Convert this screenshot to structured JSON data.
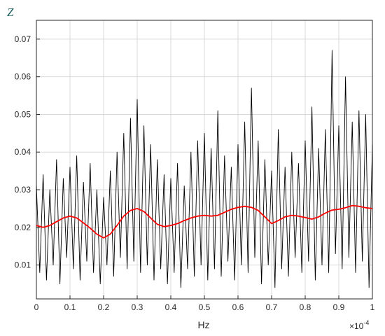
{
  "chart_data": {
    "type": "line",
    "ylabel": "Z",
    "xlabel": "Hz",
    "x_exponent_prefix": "×10",
    "x_exponent_power": "-4",
    "xlim": [
      0,
      1
    ],
    "ylim": [
      0.001,
      0.075
    ],
    "x_ticks": [
      "0",
      "0.1",
      "0.2",
      "0.3",
      "0.4",
      "0.5",
      "0.6",
      "0.7",
      "0.8",
      "0.9",
      "1"
    ],
    "y_ticks": [
      "0.01",
      "0.02",
      "0.03",
      "0.04",
      "0.05",
      "0.06",
      "0.07"
    ],
    "x_tick_values": [
      0,
      0.1,
      0.2,
      0.3,
      0.4,
      0.5,
      0.6,
      0.7,
      0.8,
      0.9,
      1
    ],
    "y_tick_values": [
      0.01,
      0.02,
      0.03,
      0.04,
      0.05,
      0.06,
      0.07
    ],
    "grid": true,
    "series": [
      {
        "color": "#000000",
        "peaks": [
          [
            0.0,
            0.031
          ],
          [
            0.01,
            0.008
          ],
          [
            0.02,
            0.034
          ],
          [
            0.03,
            0.006
          ],
          [
            0.04,
            0.03
          ],
          [
            0.05,
            0.01
          ],
          [
            0.06,
            0.038
          ],
          [
            0.07,
            0.005
          ],
          [
            0.08,
            0.033
          ],
          [
            0.09,
            0.012
          ],
          [
            0.1,
            0.036
          ],
          [
            0.11,
            0.009
          ],
          [
            0.12,
            0.039
          ],
          [
            0.13,
            0.006
          ],
          [
            0.14,
            0.032
          ],
          [
            0.15,
            0.011
          ],
          [
            0.16,
            0.037
          ],
          [
            0.17,
            0.008
          ],
          [
            0.18,
            0.03
          ],
          [
            0.19,
            0.005
          ],
          [
            0.2,
            0.028
          ],
          [
            0.21,
            0.01
          ],
          [
            0.22,
            0.035
          ],
          [
            0.23,
            0.007
          ],
          [
            0.24,
            0.04
          ],
          [
            0.25,
            0.012
          ],
          [
            0.26,
            0.045
          ],
          [
            0.27,
            0.009
          ],
          [
            0.28,
            0.049
          ],
          [
            0.29,
            0.011
          ],
          [
            0.3,
            0.054
          ],
          [
            0.31,
            0.008
          ],
          [
            0.32,
            0.047
          ],
          [
            0.33,
            0.01
          ],
          [
            0.34,
            0.042
          ],
          [
            0.35,
            0.006
          ],
          [
            0.36,
            0.038
          ],
          [
            0.37,
            0.009
          ],
          [
            0.38,
            0.034
          ],
          [
            0.39,
            0.005
          ],
          [
            0.4,
            0.033
          ],
          [
            0.41,
            0.008
          ],
          [
            0.42,
            0.037
          ],
          [
            0.43,
            0.004
          ],
          [
            0.44,
            0.031
          ],
          [
            0.45,
            0.009
          ],
          [
            0.46,
            0.04
          ],
          [
            0.47,
            0.007
          ],
          [
            0.48,
            0.043
          ],
          [
            0.49,
            0.01
          ],
          [
            0.5,
            0.045
          ],
          [
            0.51,
            0.006
          ],
          [
            0.52,
            0.041
          ],
          [
            0.53,
            0.009
          ],
          [
            0.54,
            0.051
          ],
          [
            0.55,
            0.007
          ],
          [
            0.56,
            0.039
          ],
          [
            0.57,
            0.011
          ],
          [
            0.58,
            0.036
          ],
          [
            0.59,
            0.006
          ],
          [
            0.6,
            0.042
          ],
          [
            0.61,
            0.01
          ],
          [
            0.62,
            0.048
          ],
          [
            0.63,
            0.008
          ],
          [
            0.64,
            0.057
          ],
          [
            0.65,
            0.012
          ],
          [
            0.66,
            0.043
          ],
          [
            0.67,
            0.005
          ],
          [
            0.68,
            0.038
          ],
          [
            0.69,
            0.01
          ],
          [
            0.7,
            0.035
          ],
          [
            0.71,
            0.004
          ],
          [
            0.72,
            0.046
          ],
          [
            0.73,
            0.009
          ],
          [
            0.74,
            0.036
          ],
          [
            0.75,
            0.007
          ],
          [
            0.76,
            0.04
          ],
          [
            0.77,
            0.012
          ],
          [
            0.78,
            0.037
          ],
          [
            0.79,
            0.008
          ],
          [
            0.8,
            0.043
          ],
          [
            0.81,
            0.011
          ],
          [
            0.82,
            0.052
          ],
          [
            0.83,
            0.006
          ],
          [
            0.84,
            0.041
          ],
          [
            0.85,
            0.01
          ],
          [
            0.86,
            0.046
          ],
          [
            0.87,
            0.008
          ],
          [
            0.88,
            0.067
          ],
          [
            0.89,
            0.013
          ],
          [
            0.9,
            0.047
          ],
          [
            0.91,
            0.009
          ],
          [
            0.92,
            0.06
          ],
          [
            0.93,
            0.012
          ],
          [
            0.94,
            0.048
          ],
          [
            0.95,
            0.008
          ],
          [
            0.96,
            0.051
          ],
          [
            0.97,
            0.011
          ],
          [
            0.98,
            0.05
          ],
          [
            0.99,
            0.004
          ],
          [
            1.0,
            0.042
          ]
        ]
      },
      {
        "color": "#ff0000",
        "smoothed": [
          [
            0.0,
            0.0205
          ],
          [
            0.02,
            0.02
          ],
          [
            0.04,
            0.0205
          ],
          [
            0.06,
            0.0215
          ],
          [
            0.08,
            0.0225
          ],
          [
            0.1,
            0.023
          ],
          [
            0.12,
            0.0225
          ],
          [
            0.14,
            0.0212
          ],
          [
            0.16,
            0.0198
          ],
          [
            0.18,
            0.0182
          ],
          [
            0.2,
            0.0172
          ],
          [
            0.22,
            0.0182
          ],
          [
            0.24,
            0.0205
          ],
          [
            0.26,
            0.023
          ],
          [
            0.28,
            0.0245
          ],
          [
            0.3,
            0.025
          ],
          [
            0.32,
            0.0242
          ],
          [
            0.34,
            0.0225
          ],
          [
            0.36,
            0.0208
          ],
          [
            0.38,
            0.0202
          ],
          [
            0.4,
            0.0205
          ],
          [
            0.42,
            0.021
          ],
          [
            0.44,
            0.0218
          ],
          [
            0.46,
            0.0225
          ],
          [
            0.48,
            0.023
          ],
          [
            0.5,
            0.0232
          ],
          [
            0.52,
            0.023
          ],
          [
            0.54,
            0.0232
          ],
          [
            0.56,
            0.024
          ],
          [
            0.58,
            0.0248
          ],
          [
            0.6,
            0.0253
          ],
          [
            0.62,
            0.0256
          ],
          [
            0.64,
            0.0253
          ],
          [
            0.66,
            0.0245
          ],
          [
            0.68,
            0.0228
          ],
          [
            0.7,
            0.021
          ],
          [
            0.72,
            0.0218
          ],
          [
            0.74,
            0.0228
          ],
          [
            0.76,
            0.0232
          ],
          [
            0.78,
            0.023
          ],
          [
            0.8,
            0.0226
          ],
          [
            0.82,
            0.0222
          ],
          [
            0.84,
            0.0228
          ],
          [
            0.86,
            0.0238
          ],
          [
            0.88,
            0.0246
          ],
          [
            0.9,
            0.0248
          ],
          [
            0.92,
            0.0252
          ],
          [
            0.94,
            0.0258
          ],
          [
            0.96,
            0.0256
          ],
          [
            0.98,
            0.0252
          ],
          [
            1.0,
            0.025
          ]
        ]
      }
    ]
  }
}
